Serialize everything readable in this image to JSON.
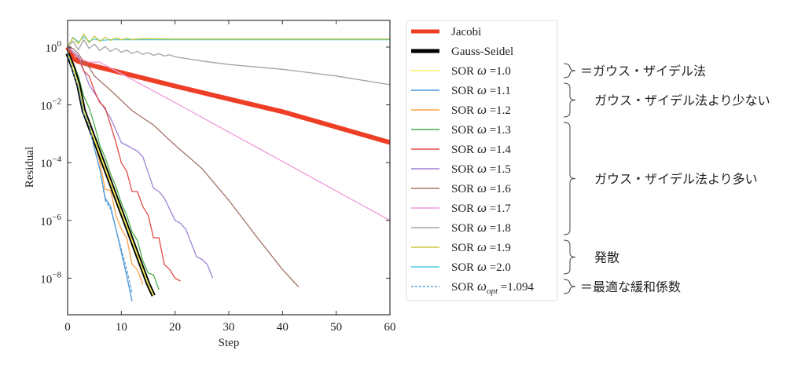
{
  "chart_data": {
    "type": "line",
    "xlabel": "Step",
    "ylabel": "Residual",
    "xlim": [
      0,
      60
    ],
    "ylim": [
      5e-10,
      8.5
    ],
    "yscale": "log",
    "grid": false,
    "legend_placement": "outside-right",
    "xticks": [
      0,
      10,
      20,
      30,
      40,
      50,
      60
    ],
    "xtick_labels": [
      "0",
      "10",
      "20",
      "30",
      "40",
      "50",
      "60"
    ],
    "yticks": [
      1,
      0.01,
      0.0001,
      1e-06,
      1e-08
    ],
    "ytick_labels": [
      {
        "base": "10",
        "exp": "0"
      },
      {
        "base": "10",
        "exp": "−2"
      },
      {
        "base": "10",
        "exp": "−4"
      },
      {
        "base": "10",
        "exp": "−6"
      },
      {
        "base": "10",
        "exp": "−8"
      }
    ],
    "series": [
      {
        "name": "Jacobi",
        "color": "#ee3f26",
        "style": "thick",
        "points": [
          [
            0,
            1
          ],
          [
            1,
            0.4
          ],
          [
            2,
            0.32
          ],
          [
            5,
            0.22
          ],
          [
            10,
            0.13
          ],
          [
            20,
            0.045
          ],
          [
            30,
            0.016
          ],
          [
            40,
            0.0058
          ],
          [
            50,
            0.0017
          ],
          [
            60,
            0.0005
          ]
        ]
      },
      {
        "name": "Gauss-Seidel",
        "color": "#000000",
        "style": "thick",
        "points": [
          [
            0,
            0.6
          ],
          [
            1,
            0.2
          ],
          [
            2,
            0.05
          ],
          [
            3,
            0.0063
          ],
          [
            5,
            0.00063
          ],
          [
            7,
            6.3e-05
          ],
          [
            9,
            6.3e-06
          ],
          [
            11,
            6.3e-07
          ],
          [
            13,
            6.3e-08
          ],
          [
            15,
            6.3e-09
          ],
          [
            16,
            2.5e-09
          ]
        ]
      },
      {
        "label": {
          "pre": "SOR ",
          "sym": "ω",
          "sub": "",
          "val": " =1.0"
        },
        "color": "#f5f060",
        "style": "thin",
        "points": [
          [
            0,
            0.6
          ],
          [
            1,
            0.2
          ],
          [
            2,
            0.05
          ],
          [
            3,
            0.0063
          ],
          [
            5,
            0.00063
          ],
          [
            7,
            6.3e-05
          ],
          [
            9,
            6.3e-06
          ],
          [
            11,
            6.3e-07
          ],
          [
            13,
            6.3e-08
          ],
          [
            15,
            6.3e-09
          ],
          [
            16,
            2.5e-09
          ]
        ]
      },
      {
        "label": {
          "pre": "SOR ",
          "sym": "ω",
          "sub": "",
          "val": " =1.1"
        },
        "color": "#4a97d8",
        "style": "thin",
        "points": [
          [
            0,
            0.6
          ],
          [
            1,
            0.15
          ],
          [
            2,
            0.04
          ],
          [
            3,
            0.005
          ],
          [
            4,
            0.002
          ],
          [
            5,
            0.0003
          ],
          [
            6,
            6e-05
          ],
          [
            7,
            6e-06
          ],
          [
            8,
            3e-06
          ],
          [
            9,
            5e-07
          ],
          [
            10,
            8e-08
          ],
          [
            11,
            1.2e-08
          ],
          [
            12,
            1.6e-09
          ]
        ]
      },
      {
        "label": {
          "pre": "SOR ",
          "sym": "ω",
          "sub": "",
          "val": " =1.2"
        },
        "color": "#ff9f45",
        "style": "thin",
        "points": [
          [
            0,
            0.7
          ],
          [
            1,
            0.2
          ],
          [
            2,
            0.05
          ],
          [
            3,
            0.008
          ],
          [
            4,
            0.003
          ],
          [
            5,
            0.0006
          ],
          [
            6,
            0.0001
          ],
          [
            7,
            1.2e-05
          ],
          [
            8,
            1.1e-05
          ],
          [
            9,
            1.5e-06
          ],
          [
            10,
            5e-07
          ],
          [
            11,
            2.5e-07
          ],
          [
            12,
            3e-08
          ],
          [
            13,
            2e-08
          ],
          [
            14,
            6e-09
          ]
        ]
      },
      {
        "label": {
          "pre": "SOR ",
          "sym": "ω",
          "sub": "",
          "val": " =1.3"
        },
        "color": "#4cae4c",
        "style": "thin",
        "points": [
          [
            0,
            0.8
          ],
          [
            1,
            0.3
          ],
          [
            2,
            0.1
          ],
          [
            3,
            0.02
          ],
          [
            4,
            0.008
          ],
          [
            5,
            0.002
          ],
          [
            6,
            0.0004
          ],
          [
            7,
            0.00015
          ],
          [
            8,
            4e-05
          ],
          [
            9,
            1.5e-05
          ],
          [
            10,
            4e-06
          ],
          [
            11,
            1.5e-06
          ],
          [
            12,
            4e-07
          ],
          [
            13,
            2e-07
          ],
          [
            14,
            4e-08
          ],
          [
            15,
            1.5e-08
          ],
          [
            16,
            1.3e-08
          ],
          [
            17,
            4e-09
          ]
        ]
      },
      {
        "label": {
          "pre": "SOR ",
          "sym": "ω",
          "sub": "",
          "val": " =1.4"
        },
        "color": "#e04a44",
        "style": "thin",
        "points": [
          [
            0,
            0.9
          ],
          [
            2,
            0.4
          ],
          [
            3,
            0.15
          ],
          [
            4,
            0.1
          ],
          [
            5,
            0.03
          ],
          [
            6,
            0.012
          ],
          [
            7,
            0.008
          ],
          [
            8,
            0.002
          ],
          [
            9,
            0.0005
          ],
          [
            10,
            0.0001
          ],
          [
            11,
            5e-05
          ],
          [
            12,
            1e-05
          ],
          [
            13,
            1e-05
          ],
          [
            14,
            3e-06
          ],
          [
            15,
            1.5e-06
          ],
          [
            16,
            2.5e-07
          ],
          [
            17,
            2.5e-07
          ],
          [
            18,
            3e-08
          ],
          [
            19,
            2e-08
          ],
          [
            20,
            1e-08
          ],
          [
            21,
            8e-09
          ]
        ]
      },
      {
        "label": {
          "pre": "SOR ",
          "sym": "ω",
          "sub": "",
          "val": " =1.5"
        },
        "color": "#9e82d2",
        "style": "thin",
        "points": [
          [
            0,
            1
          ],
          [
            2,
            0.5
          ],
          [
            4,
            0.05
          ],
          [
            8,
            0.0035
          ],
          [
            10,
            0.0005
          ],
          [
            13,
            0.00025
          ],
          [
            14,
            0.00016
          ],
          [
            16,
            1.3e-05
          ],
          [
            17,
            1e-05
          ],
          [
            18,
            6e-06
          ],
          [
            20,
            1e-06
          ],
          [
            21,
            8e-07
          ],
          [
            22,
            5e-07
          ],
          [
            24,
            5.6e-08
          ],
          [
            25,
            4.5e-08
          ],
          [
            26,
            3e-08
          ],
          [
            27,
            1e-08
          ]
        ]
      },
      {
        "label": {
          "pre": "SOR ",
          "sym": "ω",
          "sub": "",
          "val": " =1.6"
        },
        "color": "#a27468",
        "style": "thin",
        "points": [
          [
            0,
            1
          ],
          [
            1,
            0.9
          ],
          [
            2,
            0.6
          ],
          [
            3,
            0.3
          ],
          [
            4,
            0.2
          ],
          [
            5,
            0.1
          ],
          [
            8,
            0.032
          ],
          [
            12,
            0.0063
          ],
          [
            16,
            0.002
          ],
          [
            20,
            0.0004
          ],
          [
            25,
            6.3e-05
          ],
          [
            30,
            5e-06
          ],
          [
            35,
            3e-07
          ],
          [
            40,
            2e-08
          ],
          [
            43,
            5e-09
          ]
        ]
      },
      {
        "label": {
          "pre": "SOR ",
          "sym": "ω",
          "sub": "",
          "val": " =1.7"
        },
        "color": "#ee9ad8",
        "style": "thin",
        "points": [
          [
            0,
            1
          ],
          [
            1,
            0.6
          ],
          [
            2,
            0.45
          ],
          [
            3,
            0.35
          ],
          [
            4,
            0.3
          ],
          [
            6,
            0.3
          ],
          [
            20,
            0.012
          ],
          [
            40,
            0.00011
          ],
          [
            60,
            1e-06
          ]
        ]
      },
      {
        "label": {
          "pre": "SOR ",
          "sym": "ω",
          "sub": "",
          "val": " =1.8"
        },
        "color": "#a3a3a3",
        "style": "thin",
        "points": [
          [
            0,
            1
          ],
          [
            1,
            1.6
          ],
          [
            2,
            0.8
          ],
          [
            3,
            1.8
          ],
          [
            4,
            0.9
          ],
          [
            5,
            1.26
          ],
          [
            6,
            0.76
          ],
          [
            7,
            1.05
          ],
          [
            8,
            0.71
          ],
          [
            9,
            0.91
          ],
          [
            10,
            0.66
          ],
          [
            11,
            0.79
          ],
          [
            12,
            0.6
          ],
          [
            13,
            0.72
          ],
          [
            14,
            0.56
          ],
          [
            15,
            0.65
          ],
          [
            16,
            0.52
          ],
          [
            17,
            0.59
          ],
          [
            18,
            0.49
          ],
          [
            19,
            0.54
          ],
          [
            20,
            0.46
          ],
          [
            25,
            0.33
          ],
          [
            30,
            0.25
          ],
          [
            40,
            0.17
          ],
          [
            50,
            0.1
          ],
          [
            60,
            0.05
          ]
        ]
      },
      {
        "label": {
          "pre": "SOR ",
          "sym": "ω",
          "sub": "",
          "val": " =1.9"
        },
        "color": "#c8c83c",
        "style": "thin",
        "points": [
          [
            0,
            1
          ],
          [
            1,
            2.1
          ],
          [
            2,
            1.3
          ],
          [
            3,
            2.9
          ],
          [
            4,
            1.4
          ],
          [
            5,
            2.4
          ],
          [
            6,
            1.6
          ],
          [
            7,
            2.2
          ],
          [
            8,
            1.7
          ],
          [
            9,
            2.1
          ],
          [
            10,
            1.8
          ],
          [
            11,
            2.0
          ],
          [
            12,
            1.85
          ],
          [
            14,
            1.95
          ],
          [
            20,
            1.9
          ],
          [
            60,
            1.9
          ]
        ]
      },
      {
        "label": {
          "pre": "SOR ",
          "sym": "ω",
          "sub": "",
          "val": " =2.0"
        },
        "color": "#50cbe0",
        "style": "thin",
        "points": [
          [
            0,
            1
          ],
          [
            1,
            2.2
          ],
          [
            2,
            1.5
          ],
          [
            3,
            2.3
          ],
          [
            4,
            1.6
          ],
          [
            5,
            1.9
          ],
          [
            6,
            1.7
          ],
          [
            8,
            1.8
          ],
          [
            60,
            1.8
          ]
        ]
      },
      {
        "label": {
          "pre": "SOR ",
          "sym": "ω",
          "sub": "opt",
          "val": " =1.094"
        },
        "color": "#5a9fd4",
        "style": "dashed",
        "points": [
          [
            0,
            0.6
          ],
          [
            1,
            0.15
          ],
          [
            2,
            0.04
          ],
          [
            3,
            0.005
          ],
          [
            4,
            0.002
          ],
          [
            5,
            0.0003
          ],
          [
            6,
            6e-05
          ],
          [
            7,
            5e-06
          ],
          [
            8,
            2.5e-06
          ],
          [
            9,
            5e-07
          ],
          [
            10,
            1e-07
          ],
          [
            11,
            2e-08
          ],
          [
            12,
            3e-09
          ]
        ]
      }
    ],
    "annotations": [
      {
        "text": "＝ガウス・ザイデル法",
        "rows": [
          2,
          2
        ]
      },
      {
        "text": "ガウス・ザイデル法より少ない",
        "rows": [
          3,
          4
        ]
      },
      {
        "text": "ガウス・ザイデル法より多い",
        "rows": [
          5,
          10
        ]
      },
      {
        "text": "発散",
        "rows": [
          11,
          12
        ]
      },
      {
        "text": "＝最適な緩和係数",
        "rows": [
          13,
          13
        ]
      }
    ]
  }
}
